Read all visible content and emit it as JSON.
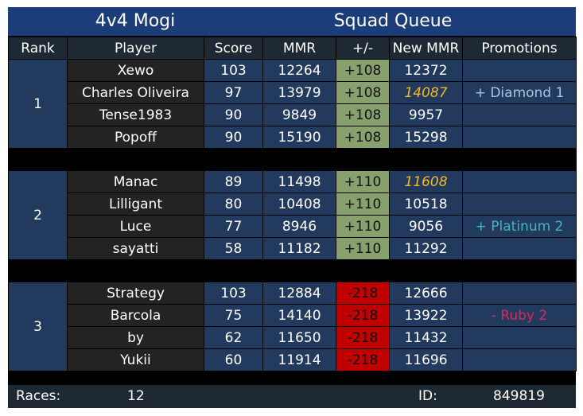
{
  "header": {
    "left_title": "4v4 Mogi",
    "right_title": "Squad Queue"
  },
  "columns": [
    "Rank",
    "Player",
    "Score",
    "MMR",
    "+/-",
    "New MMR",
    "Promotions"
  ],
  "teams": [
    {
      "rank": "1",
      "players": [
        {
          "name": "Xewo",
          "score": "103",
          "mmr": "12264",
          "delta": "+108",
          "new_mmr": "12372",
          "promotion": "",
          "highlight": false
        },
        {
          "name": "Charles Oliveira",
          "score": "97",
          "mmr": "13979",
          "delta": "+108",
          "new_mmr": "14087",
          "promotion": "+ Diamond 1",
          "highlight": true
        },
        {
          "name": "Tense1983",
          "score": "90",
          "mmr": "9849",
          "delta": "+108",
          "new_mmr": "9957",
          "promotion": "",
          "highlight": false
        },
        {
          "name": "Popoff",
          "score": "90",
          "mmr": "15190",
          "delta": "+108",
          "new_mmr": "15298",
          "promotion": "",
          "highlight": false
        }
      ]
    },
    {
      "rank": "2",
      "players": [
        {
          "name": "Manac",
          "score": "89",
          "mmr": "11498",
          "delta": "+110",
          "new_mmr": "11608",
          "promotion": "",
          "highlight": true
        },
        {
          "name": "Lilligant",
          "score": "80",
          "mmr": "10408",
          "delta": "+110",
          "new_mmr": "10518",
          "promotion": "",
          "highlight": false
        },
        {
          "name": "Luce",
          "score": "77",
          "mmr": "8946",
          "delta": "+110",
          "new_mmr": "9056",
          "promotion": "+ Platinum 2",
          "highlight": false
        },
        {
          "name": "sayatti",
          "score": "58",
          "mmr": "11182",
          "delta": "+110",
          "new_mmr": "11292",
          "promotion": "",
          "highlight": false
        }
      ]
    },
    {
      "rank": "3",
      "players": [
        {
          "name": "Strategy",
          "score": "103",
          "mmr": "12884",
          "delta": "-218",
          "new_mmr": "12666",
          "promotion": "",
          "highlight": false
        },
        {
          "name": "Barcola",
          "score": "75",
          "mmr": "14140",
          "delta": "-218",
          "new_mmr": "13922",
          "promotion": "- Ruby 2",
          "highlight": false
        },
        {
          "name": "by",
          "score": "62",
          "mmr": "11650",
          "delta": "-218",
          "new_mmr": "11432",
          "promotion": "",
          "highlight": false
        },
        {
          "name": "Yukii",
          "score": "60",
          "mmr": "11914",
          "delta": "-218",
          "new_mmr": "11696",
          "promotion": "",
          "highlight": false
        }
      ]
    }
  ],
  "footer": {
    "races_label": "Races:",
    "races_value": "12",
    "id_label": "ID:",
    "id_value": "849819"
  },
  "colors": {
    "title_bg": "#1b3d7a",
    "header_bg": "#1f2933",
    "cell_blue": "#223a5e",
    "cell_dark": "#232323",
    "gain_green": "#87a06e",
    "loss_red": "#c00000",
    "highlight_gold": "#f2b92a",
    "diamond": "#a9c4de",
    "platinum": "#3fb8b8",
    "ruby": "#d72b5e"
  }
}
